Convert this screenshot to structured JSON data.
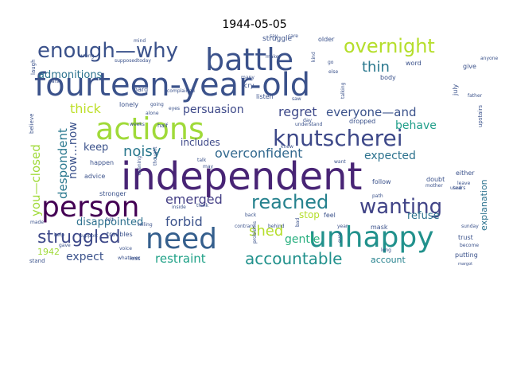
{
  "chart_data": {
    "type": "wordcloud",
    "title": "1944-05-05",
    "words": [
      {
        "text": "independent",
        "weight": 100,
        "color": "#482475"
      },
      {
        "text": "fourteen-year-old",
        "weight": 92,
        "color": "#3b528b"
      },
      {
        "text": "battle",
        "weight": 80,
        "color": "#3b528b"
      },
      {
        "text": "actions",
        "weight": 78,
        "color": "#a0da39"
      },
      {
        "text": "person",
        "weight": 74,
        "color": "#440154"
      },
      {
        "text": "need",
        "weight": 72,
        "color": "#355f8d"
      },
      {
        "text": "unhappy",
        "weight": 70,
        "color": "#21918c"
      },
      {
        "text": "knutscherei",
        "weight": 62,
        "color": "#3e4989"
      },
      {
        "text": "enough—why",
        "weight": 58,
        "color": "#3b528b"
      },
      {
        "text": "wanting",
        "weight": 56,
        "color": "#414487"
      },
      {
        "text": "reached",
        "weight": 54,
        "color": "#26828e"
      },
      {
        "text": "overnight",
        "weight": 50,
        "color": "#b5de2b"
      },
      {
        "text": "struggled",
        "weight": 46,
        "color": "#3e4989"
      },
      {
        "text": "accountable",
        "weight": 42,
        "color": "#21918c"
      },
      {
        "text": "thick",
        "weight": 36,
        "color": "#bddf26"
      },
      {
        "text": "noisy",
        "weight": 36,
        "color": "#2a788e"
      },
      {
        "text": "overconfident",
        "weight": 34,
        "color": "#31688e"
      },
      {
        "text": "emerged",
        "weight": 32,
        "color": "#433e85"
      },
      {
        "text": "forbid",
        "weight": 32,
        "color": "#3b528b"
      },
      {
        "text": "shed",
        "weight": 32,
        "color": "#b5de2b"
      },
      {
        "text": "regret",
        "weight": 30,
        "color": "#3e4989"
      },
      {
        "text": "everyone—and",
        "weight": 30,
        "color": "#3b528b"
      },
      {
        "text": "thin",
        "weight": 30,
        "color": "#2a788e"
      },
      {
        "text": "despondent",
        "weight": 28,
        "color": "#2a788e"
      },
      {
        "text": "you—closed",
        "weight": 28,
        "color": "#a0da39"
      },
      {
        "text": "restraint",
        "weight": 28,
        "color": "#1fa187"
      },
      {
        "text": "expected",
        "weight": 26,
        "color": "#2c728e"
      },
      {
        "text": "behave",
        "weight": 26,
        "color": "#1f9e89"
      },
      {
        "text": "gentle",
        "weight": 26,
        "color": "#29af7f"
      },
      {
        "text": "persuasion",
        "weight": 24,
        "color": "#3e4989"
      },
      {
        "text": "expect",
        "weight": 24,
        "color": "#3b528b"
      },
      {
        "text": "now…now",
        "weight": 24,
        "color": "#3b528b"
      },
      {
        "text": "disappointed",
        "weight": 22,
        "color": "#2d708e"
      },
      {
        "text": "keep",
        "weight": 22,
        "color": "#3b528b"
      },
      {
        "text": "admonitions",
        "weight": 22,
        "color": "#2c728e"
      },
      {
        "text": "refuse",
        "weight": 22,
        "color": "#2c728e"
      },
      {
        "text": "includes",
        "weight": 20,
        "color": "#3e4989"
      },
      {
        "text": "stop",
        "weight": 20,
        "color": "#b5de2b"
      },
      {
        "text": "explanation",
        "weight": 18,
        "color": "#2c728e"
      },
      {
        "text": "account",
        "weight": 18,
        "color": "#26828e"
      },
      {
        "text": "1942",
        "weight": 18,
        "color": "#a0da39"
      },
      {
        "text": "struggle",
        "weight": 14,
        "color": "#3b528b"
      },
      {
        "text": "lonely",
        "weight": 14,
        "color": "#3b528b"
      },
      {
        "text": "hard",
        "weight": 14,
        "color": "#3b528b"
      },
      {
        "text": "dropped",
        "weight": 14,
        "color": "#3b528b"
      },
      {
        "text": "july",
        "weight": 14,
        "color": "#3b528b"
      },
      {
        "text": "body",
        "weight": 14,
        "color": "#3b528b"
      },
      {
        "text": "word",
        "weight": 14,
        "color": "#3b528b"
      },
      {
        "text": "either",
        "weight": 14,
        "color": "#3b528b"
      },
      {
        "text": "doubt",
        "weight": 14,
        "color": "#3b528b"
      },
      {
        "text": "trust",
        "weight": 14,
        "color": "#3b528b"
      },
      {
        "text": "putting",
        "weight": 14,
        "color": "#3b528b"
      },
      {
        "text": "feel",
        "weight": 14,
        "color": "#3b528b"
      },
      {
        "text": "mask",
        "weight": 14,
        "color": "#3b528b"
      },
      {
        "text": "stronger",
        "weight": 14,
        "color": "#3b528b"
      },
      {
        "text": "happen",
        "weight": 14,
        "color": "#3b528b"
      },
      {
        "text": "advice",
        "weight": 14,
        "color": "#3b528b"
      },
      {
        "text": "troubles",
        "weight": 14,
        "color": "#3b528b"
      },
      {
        "text": "cry",
        "weight": 14,
        "color": "#3b528b"
      },
      {
        "text": "listen",
        "weight": 14,
        "color": "#3b528b"
      },
      {
        "text": "follow",
        "weight": 14,
        "color": "#3b528b"
      },
      {
        "text": "older",
        "weight": 14,
        "color": "#3b528b"
      },
      {
        "text": "give",
        "weight": 14,
        "color": "#3b528b"
      },
      {
        "text": "believe",
        "weight": 14,
        "color": "#3b528b"
      },
      {
        "text": "laugh",
        "weight": 14,
        "color": "#3b528b"
      },
      {
        "text": "stand",
        "weight": 14,
        "color": "#3b528b"
      },
      {
        "text": "less",
        "weight": 14,
        "color": "#3b528b"
      },
      {
        "text": "upstairs",
        "weight": 14,
        "color": "#3b528b"
      },
      {
        "text": "ears",
        "weight": 10,
        "color": "#3b528b"
      },
      {
        "text": "complained",
        "weight": 10,
        "color": "#3b528b"
      },
      {
        "text": "support",
        "weight": 10,
        "color": "#3b528b"
      },
      {
        "text": "felt",
        "weight": 10,
        "color": "#3b528b"
      },
      {
        "text": "voice",
        "weight": 10,
        "color": "#3b528b"
      },
      {
        "text": "telling",
        "weight": 10,
        "color": "#3b528b"
      },
      {
        "text": "whatever",
        "weight": 10,
        "color": "#3b528b"
      },
      {
        "text": "problems",
        "weight": 10,
        "color": "#3b528b"
      },
      {
        "text": "contrary",
        "weight": 10,
        "color": "#3b528b"
      },
      {
        "text": "behind",
        "weight": 10,
        "color": "#3b528b"
      },
      {
        "text": "back",
        "weight": 10,
        "color": "#3b528b"
      },
      {
        "text": "path",
        "weight": 10,
        "color": "#3b528b"
      },
      {
        "text": "tears",
        "weight": 10,
        "color": "#3b528b"
      },
      {
        "text": "sunday",
        "weight": 10,
        "color": "#3b528b"
      },
      {
        "text": "become",
        "weight": 10,
        "color": "#3b528b"
      },
      {
        "text": "long",
        "weight": 10,
        "color": "#3b528b"
      },
      {
        "text": "year",
        "weight": 10,
        "color": "#3b528b"
      },
      {
        "text": "thought",
        "weight": 10,
        "color": "#3b528b"
      },
      {
        "text": "evening",
        "weight": 10,
        "color": "#3b528b"
      },
      {
        "text": "alone",
        "weight": 10,
        "color": "#3b528b"
      },
      {
        "text": "going",
        "weight": 10,
        "color": "#3b528b"
      },
      {
        "text": "weeks",
        "weight": 10,
        "color": "#3b528b"
      },
      {
        "text": "half",
        "weight": 10,
        "color": "#3b528b"
      },
      {
        "text": "think",
        "weight": 10,
        "color": "#3b528b"
      },
      {
        "text": "inside",
        "weight": 10,
        "color": "#3b528b"
      },
      {
        "text": "talk",
        "weight": 10,
        "color": "#3b528b"
      },
      {
        "text": "may",
        "weight": 10,
        "color": "#3b528b"
      },
      {
        "text": "understand",
        "weight": 10,
        "color": "#3b528b"
      },
      {
        "text": "day",
        "weight": 10,
        "color": "#3b528b"
      },
      {
        "text": "knew",
        "weight": 10,
        "color": "#3b528b"
      },
      {
        "text": "want",
        "weight": 10,
        "color": "#3b528b"
      },
      {
        "text": "mind",
        "weight": 10,
        "color": "#3b528b"
      },
      {
        "text": "care",
        "weight": 10,
        "color": "#3b528b"
      },
      {
        "text": "say",
        "weight": 10,
        "color": "#3b528b"
      },
      {
        "text": "kind",
        "weight": 10,
        "color": "#3b528b"
      },
      {
        "text": "make",
        "weight": 10,
        "color": "#3b528b"
      },
      {
        "text": "else",
        "weight": 10,
        "color": "#3b528b"
      },
      {
        "text": "go",
        "weight": 10,
        "color": "#3b528b"
      },
      {
        "text": "many",
        "weight": 10,
        "color": "#3b528b"
      },
      {
        "text": "wrong",
        "weight": 10,
        "color": "#3b528b"
      },
      {
        "text": "supposedtoday",
        "weight": 10,
        "color": "#3b528b"
      },
      {
        "text": "anyone",
        "weight": 10,
        "color": "#3b528b"
      },
      {
        "text": "father",
        "weight": 10,
        "color": "#3b528b"
      },
      {
        "text": "leave",
        "weight": 10,
        "color": "#3b528b"
      },
      {
        "text": "used",
        "weight": 10,
        "color": "#3b528b"
      },
      {
        "text": "mother",
        "weight": 10,
        "color": "#3b528b"
      },
      {
        "text": "made",
        "weight": 10,
        "color": "#3b528b"
      },
      {
        "text": "help",
        "weight": 10,
        "color": "#3b528b"
      },
      {
        "text": "gave",
        "weight": 10,
        "color": "#3b528b"
      },
      {
        "text": "margot",
        "weight": 10,
        "color": "#3b528b"
      },
      {
        "text": "bad",
        "weight": 10,
        "color": "#3b528b"
      },
      {
        "text": "talking",
        "weight": 10,
        "color": "#3b528b"
      },
      {
        "text": "saw",
        "weight": 10,
        "color": "#3b528b"
      },
      {
        "text": "ever",
        "weight": 10,
        "color": "#3b528b"
      },
      {
        "text": "eyes",
        "weight": 10,
        "color": "#3b528b"
      }
    ]
  }
}
